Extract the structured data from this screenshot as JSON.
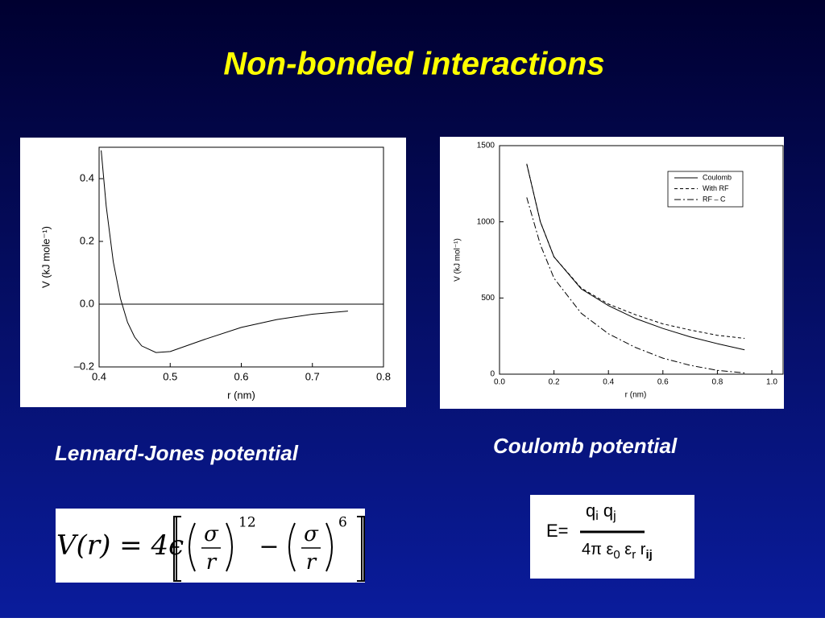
{
  "title": "Non-bonded interactions",
  "captions": [
    "Lennard-Jones potential",
    "Coulomb potential"
  ],
  "formulas": {
    "lennard_jones": {
      "lhs": "V(r) = 4ϵ",
      "sigma": "σ",
      "r": "r",
      "p12": "12",
      "minus": "−",
      "p6": "6"
    },
    "coulomb": {
      "lhs": "E=",
      "numerator": [
        "q",
        "i",
        "q",
        "j"
      ],
      "denominator": [
        "4π ε",
        "0",
        " ε",
        "r",
        " r",
        "ij"
      ]
    }
  },
  "chart_data": [
    {
      "type": "line",
      "xlabel": "r (nm)",
      "ylabel": "V (kJ mole⁻¹)",
      "x": [
        0.403,
        0.41,
        0.42,
        0.43,
        0.44,
        0.45,
        0.46,
        0.48,
        0.5,
        0.55,
        0.6,
        0.65,
        0.7,
        0.75
      ],
      "series": [
        {
          "color": "#000000",
          "linestyle": "solid",
          "values": [
            0.49,
            0.313,
            0.135,
            0.018,
            -0.058,
            -0.105,
            -0.133,
            -0.154,
            -0.151,
            -0.111,
            -0.074,
            -0.049,
            -0.032,
            -0.022
          ]
        }
      ],
      "xlim": [
        0.4,
        0.8
      ],
      "ylim": [
        -0.2,
        0.5
      ],
      "xticks": [
        0.4,
        0.5,
        0.6,
        0.7,
        0.8
      ],
      "yticks": [
        {
          "value": -0.2,
          "label": "–0.2"
        },
        {
          "value": 0,
          "label": "0.0"
        },
        0.2,
        0.4
      ],
      "zero_line": true,
      "grid": false
    },
    {
      "type": "line",
      "xlabel": "r (nm)",
      "ylabel": "V (kJ mol⁻¹)",
      "x": [
        0.1,
        0.15,
        0.2,
        0.3,
        0.4,
        0.5,
        0.6,
        0.7,
        0.8,
        0.9
      ],
      "series": [
        {
          "name": "Coulomb",
          "color": "#000000",
          "linestyle": "solid",
          "values": [
            1380,
            1000,
            770,
            560,
            450,
            365,
            300,
            245,
            200,
            160
          ]
        },
        {
          "name": "With RF",
          "color": "#000000",
          "linestyle": "dashed",
          "values": [
            1380,
            1000,
            770,
            565,
            460,
            390,
            330,
            290,
            255,
            235
          ]
        },
        {
          "name": "RF – C",
          "color": "#000000",
          "linestyle": "dashdot",
          "values": [
            1160,
            850,
            630,
            400,
            265,
            175,
            105,
            58,
            25,
            8
          ]
        }
      ],
      "xlim": [
        0,
        1
      ],
      "ylim": [
        0,
        1500
      ],
      "xticks": [
        {
          "value": 0,
          "label": "0.0"
        },
        0.2,
        0.4,
        0.6,
        0.8,
        {
          "value": 1,
          "label": "1.0"
        }
      ],
      "yticks": [
        0,
        500,
        1000,
        1500
      ],
      "legend": "upper right",
      "grid": false
    }
  ]
}
